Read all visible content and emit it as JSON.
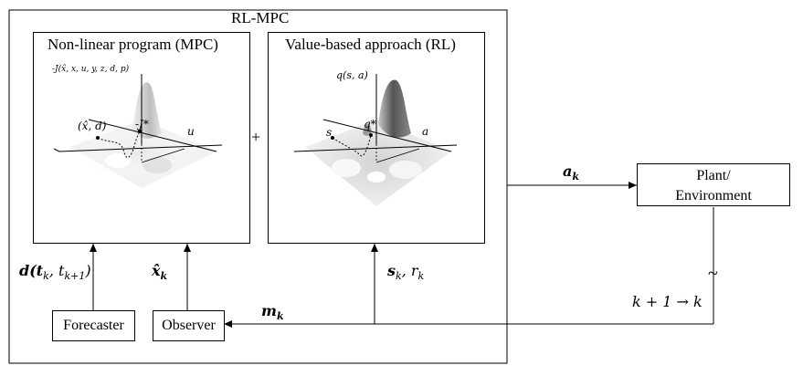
{
  "outer": {
    "title": "RL-MPC"
  },
  "mpc": {
    "title": "Non-linear program (MPC)",
    "axis_z": "-J(x̂, x, u, y, z, d, p)",
    "axis_u": "u",
    "point_label": "(x̂, d)",
    "opt_label": "-J*"
  },
  "plus": "+",
  "rl": {
    "title": "Value-based approach (RL)",
    "axis_z": "q(s, a)",
    "axis_s": "s",
    "axis_a": "a",
    "opt_label": "q*"
  },
  "plant": {
    "line1": "Plant/",
    "line2": "Environment"
  },
  "forecaster": "Forecaster",
  "observer": "Observer",
  "signals": {
    "d": "d(t",
    "d_sub1": "k",
    "d_mid": ", t",
    "d_sub2": "k+1",
    "d_end": ")",
    "xhat": "x̂",
    "xhat_sub": "k",
    "s": "s",
    "s_sub": "k",
    "r_sep": ", r",
    "r_sub": "k",
    "a": "a",
    "a_sub": "k",
    "m": "m",
    "m_sub": "k",
    "shift": "k + 1 → k",
    "tilde": "~"
  }
}
